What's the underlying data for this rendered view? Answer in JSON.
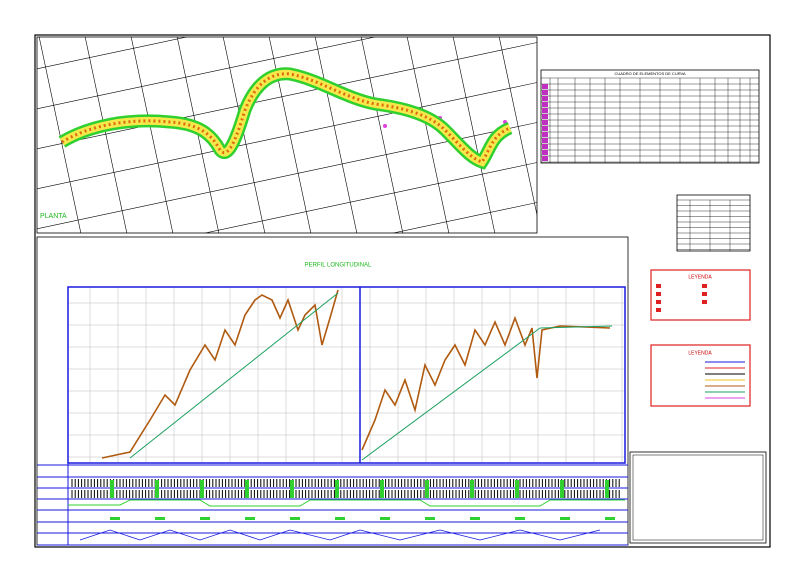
{
  "plan": {
    "title": "PLANTA"
  },
  "curve_table": {
    "title": "CUADRO DE ELEMENTOS DE CURVA"
  },
  "profile": {
    "title": "PERFIL LONGITUDINAL"
  },
  "legend_1": {
    "title": "LEYENDA"
  },
  "legend_2": {
    "title": "LEYENDA"
  }
}
